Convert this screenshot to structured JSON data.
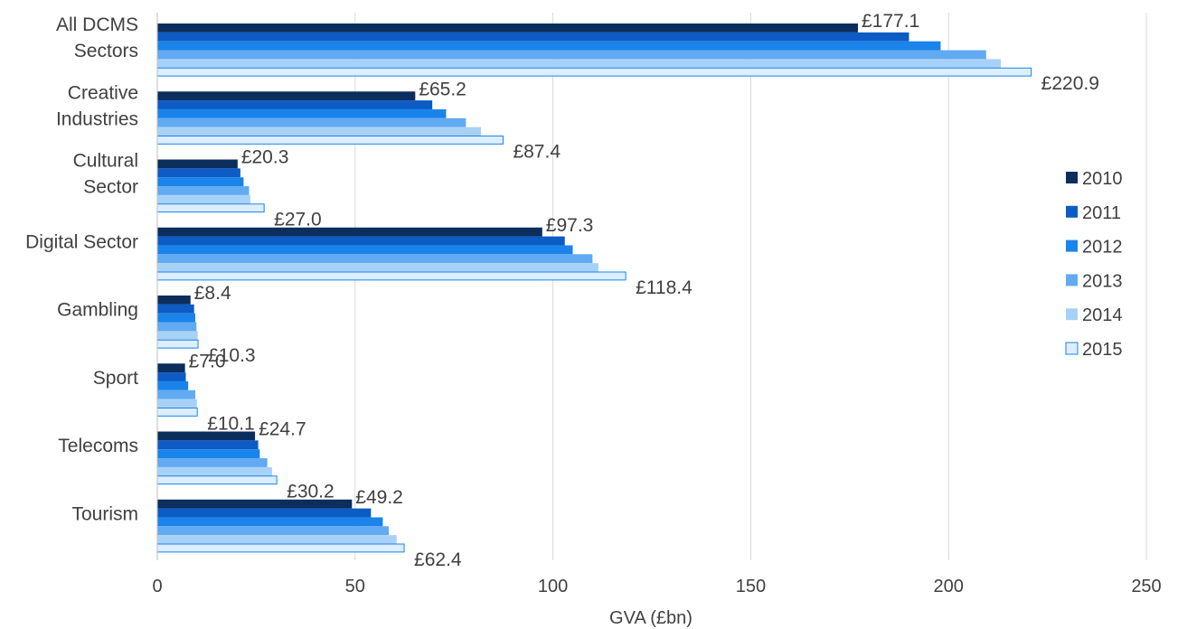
{
  "chart_data": {
    "type": "bar",
    "orientation": "horizontal",
    "title": "",
    "xlabel": "GVA (£bn)",
    "ylabel": "",
    "xlim": [
      0,
      250
    ],
    "xticks": [
      "0",
      "50",
      "100",
      "150",
      "200",
      "250"
    ],
    "grid": "vertical",
    "legend_position": "right",
    "categories": [
      [
        "All DCMS",
        "Sectors"
      ],
      [
        "Creative",
        "Industries"
      ],
      [
        "Cultural",
        "Sector"
      ],
      [
        "Digital Sector"
      ],
      [
        "Gambling"
      ],
      [
        "Sport"
      ],
      [
        "Telecoms"
      ],
      [
        "Tourism"
      ]
    ],
    "series": [
      {
        "name": "2010",
        "color": "#0b2e5c",
        "values": [
          177.1,
          65.2,
          20.3,
          97.3,
          8.4,
          7.0,
          24.7,
          49.2
        ]
      },
      {
        "name": "2011",
        "color": "#0d5bc4",
        "values": [
          190.0,
          69.5,
          21.0,
          103.0,
          9.3,
          7.2,
          25.5,
          54.0
        ]
      },
      {
        "name": "2012",
        "color": "#1a84ea",
        "values": [
          198.0,
          73.0,
          21.8,
          105.0,
          9.6,
          7.8,
          25.9,
          57.0
        ]
      },
      {
        "name": "2013",
        "color": "#62aaf2",
        "values": [
          209.5,
          78.0,
          23.2,
          110.0,
          9.9,
          9.6,
          27.8,
          58.5
        ]
      },
      {
        "name": "2014",
        "color": "#a8d1f8",
        "values": [
          213.2,
          81.8,
          23.5,
          111.5,
          10.2,
          10.0,
          29.0,
          60.5
        ]
      },
      {
        "name": "2015",
        "color": "#ddeefc",
        "values": [
          220.9,
          87.4,
          27.0,
          118.4,
          10.3,
          10.1,
          30.2,
          62.4
        ]
      }
    ],
    "data_labels": {
      "first": [
        "£177.1",
        "£65.2",
        "£20.3",
        "£97.3",
        "£8.4",
        "£7.0",
        "£24.7",
        "£49.2"
      ],
      "last": [
        "£220.9",
        "£87.4",
        "£27.0",
        "£118.4",
        "£10.3",
        "£10.1",
        "£30.2",
        "£62.4"
      ]
    },
    "colors": {
      "grid": "#d9d9d9",
      "axis": "#bfbfbf",
      "text": "#404040",
      "last_series_outline": "#1a84ea"
    }
  }
}
